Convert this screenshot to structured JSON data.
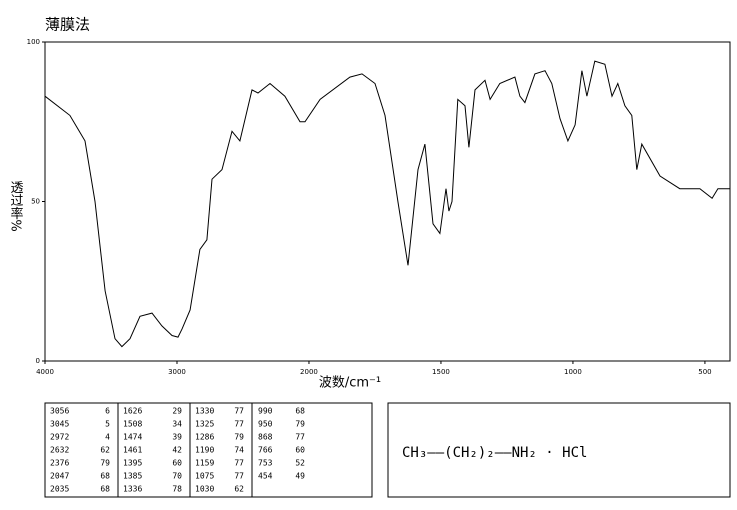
{
  "chart_data": {
    "type": "line",
    "title": "薄膜法",
    "x_label": "波数/cm⁻¹",
    "y_label": "透过率%",
    "xlim": [
      4000,
      405
    ],
    "x_scale_break": 2000,
    "ylim": [
      0,
      100
    ],
    "xticks": [
      4000,
      3000,
      2000,
      1500,
      1000,
      500
    ],
    "yticks": [
      0,
      50,
      100
    ],
    "color": "#000000",
    "x": [
      4000,
      3811,
      3697,
      3621,
      3545,
      3470,
      3417,
      3356,
      3280,
      3189,
      3114,
      3038,
      2992,
      2962,
      2901,
      2826,
      2773,
      2735,
      2659,
      2583,
      2523,
      2432,
      2386,
      2295,
      2182,
      2068,
      2030,
      1958,
      1845,
      1799,
      1750,
      1712,
      1663,
      1625,
      1587,
      1561,
      1530,
      1504,
      1481,
      1470,
      1458,
      1436,
      1409,
      1394,
      1371,
      1333,
      1314,
      1277,
      1220,
      1201,
      1182,
      1144,
      1106,
      1080,
      1049,
      1019,
      992,
      966,
      947,
      917,
      879,
      852,
      830,
      803,
      777,
      758,
      739,
      670,
      595,
      519,
      473,
      451,
      405
    ],
    "values": [
      83,
      77,
      69,
      50,
      22,
      7,
      4.5,
      7,
      14,
      15,
      11,
      8,
      7.5,
      10,
      16,
      35,
      38,
      57,
      60,
      72,
      69,
      85,
      84,
      87,
      83,
      75,
      75,
      82,
      89,
      90,
      87,
      77,
      50,
      30,
      60,
      68,
      43,
      40,
      54,
      47,
      50,
      82,
      80,
      67,
      85,
      88,
      82,
      87,
      89,
      83,
      81,
      90,
      91,
      87,
      76,
      69,
      74,
      91,
      83,
      94,
      93,
      83,
      87,
      80,
      77,
      60,
      68,
      58,
      54,
      54,
      51,
      54,
      54
    ]
  },
  "peak_table": [
    [
      [
        3056,
        6
      ],
      [
        3045,
        5
      ],
      [
        2972,
        4
      ],
      [
        2632,
        62
      ],
      [
        2376,
        79
      ],
      [
        2047,
        68
      ],
      [
        2035,
        68
      ]
    ],
    [
      [
        1626,
        29
      ],
      [
        1508,
        34
      ],
      [
        1474,
        39
      ],
      [
        1461,
        42
      ],
      [
        1395,
        60
      ],
      [
        1385,
        70
      ],
      [
        1336,
        78
      ]
    ],
    [
      [
        1330,
        77
      ],
      [
        1325,
        77
      ],
      [
        1286,
        79
      ],
      [
        1190,
        74
      ],
      [
        1159,
        77
      ],
      [
        1075,
        77
      ],
      [
        1030,
        62
      ]
    ],
    [
      [
        990,
        68
      ],
      [
        950,
        79
      ],
      [
        868,
        77
      ],
      [
        766,
        60
      ],
      [
        753,
        52
      ],
      [
        454,
        49
      ]
    ]
  ],
  "formula": "CH₃——(CH₂)₂——NH₂  ·  HCl"
}
